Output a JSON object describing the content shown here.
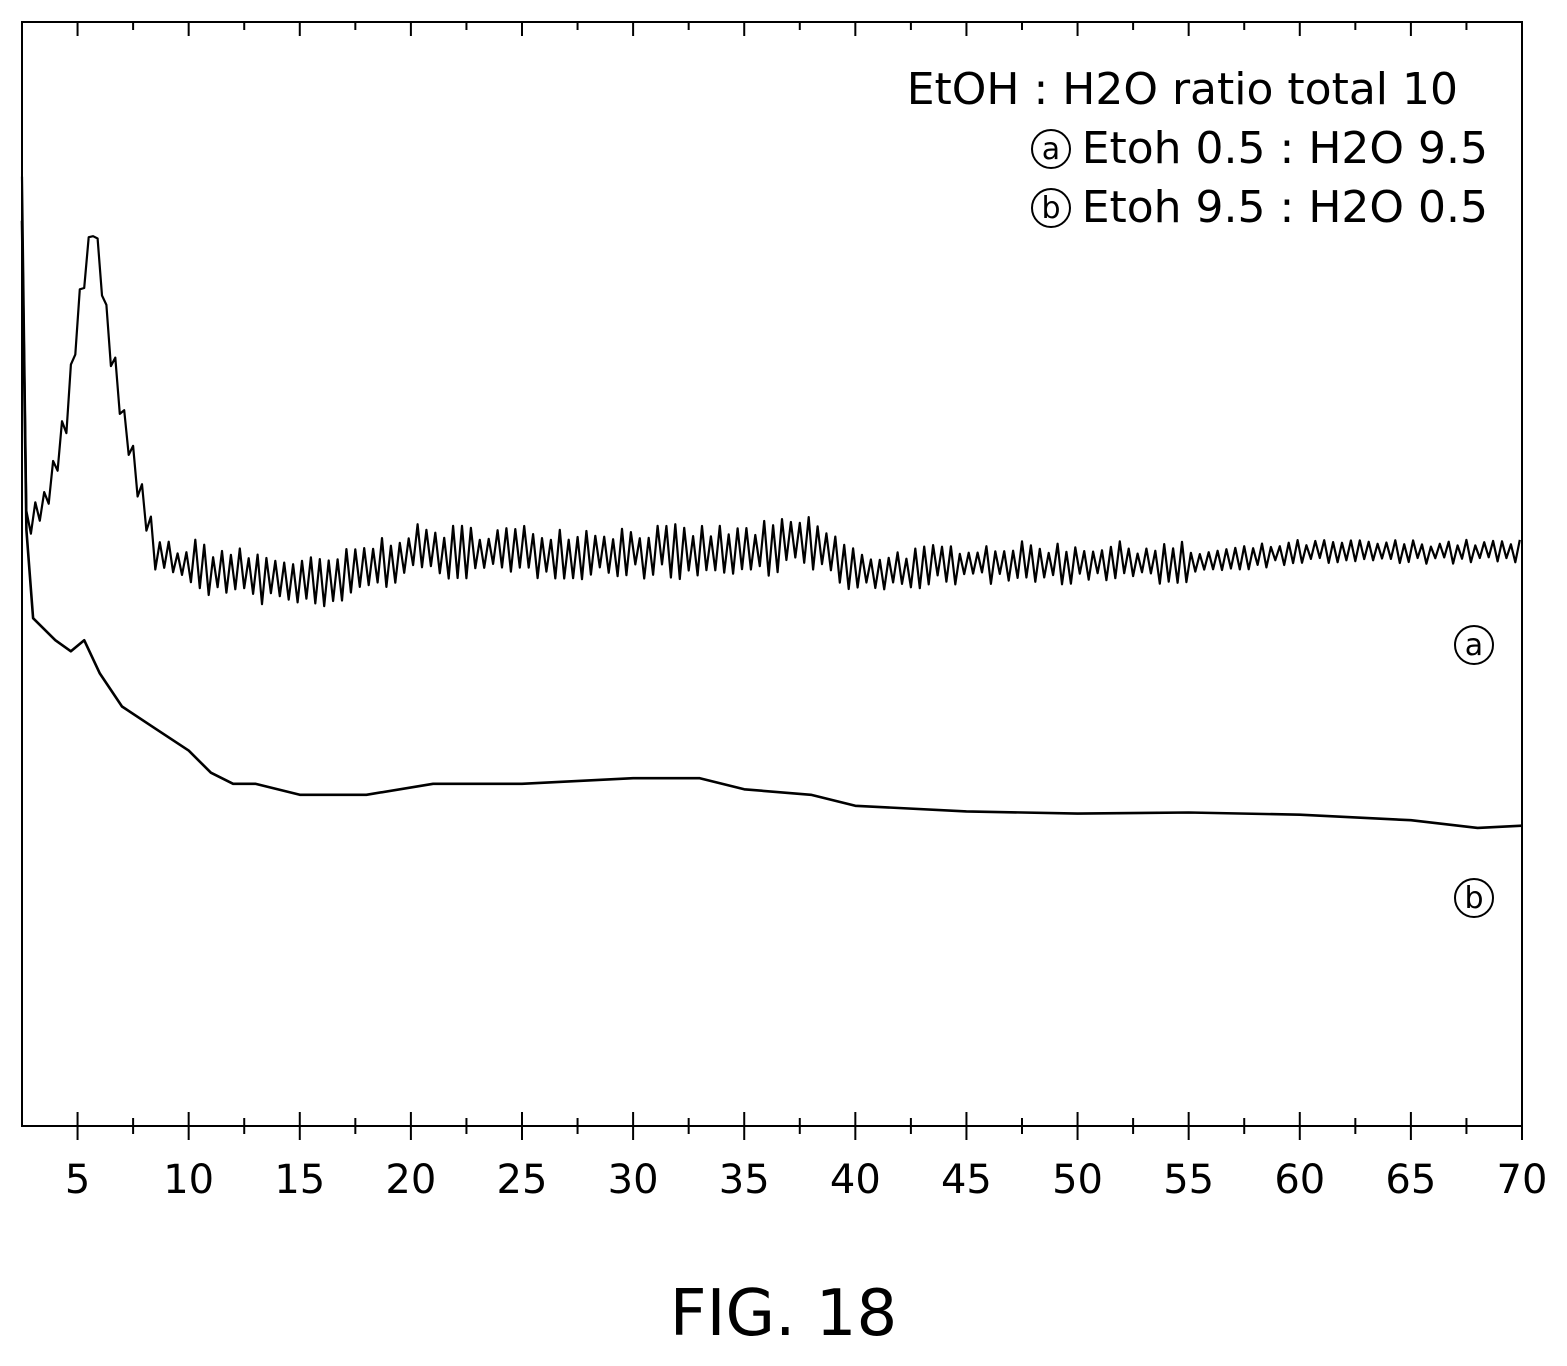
{
  "figure": {
    "caption": "FIG. 18"
  },
  "chart_data": {
    "type": "line",
    "title": "",
    "xlabel": "",
    "ylabel": "",
    "xlim": [
      2.5,
      70
    ],
    "x_ticks_major": [
      5,
      10,
      15,
      20,
      25,
      30,
      35,
      40,
      45,
      50,
      55,
      60,
      65,
      70
    ],
    "x_ticks_minor": [
      7.5,
      12.5,
      17.5,
      22.5,
      27.5,
      32.5,
      37.5,
      42.5,
      47.5,
      52.5,
      57.5,
      62.5,
      67.5
    ],
    "y_ticks": "none",
    "grid": false,
    "legend": {
      "placement": "top-right",
      "heading": "EtOH : H2O ratio total 10",
      "entries": [
        {
          "marker": "a",
          "label": "Etoh 0.5 : H2O 9.5"
        },
        {
          "marker": "b",
          "label": "Etoh 9.5 : H2O 0.5"
        }
      ]
    },
    "series": [
      {
        "name": "a",
        "noisy": true,
        "points": [
          [
            2.5,
            0.86
          ],
          [
            2.7,
            0.55
          ],
          [
            3.5,
            0.56
          ],
          [
            4.5,
            0.64
          ],
          [
            5.0,
            0.73
          ],
          [
            5.7,
            0.82
          ],
          [
            6.5,
            0.7
          ],
          [
            7.5,
            0.6
          ],
          [
            8.5,
            0.52
          ],
          [
            9.5,
            0.51
          ],
          [
            12,
            0.5
          ],
          [
            16,
            0.49
          ],
          [
            20,
            0.52
          ],
          [
            25,
            0.52
          ],
          [
            30,
            0.52
          ],
          [
            35,
            0.52
          ],
          [
            38,
            0.53
          ],
          [
            40,
            0.5
          ],
          [
            45,
            0.51
          ],
          [
            50,
            0.51
          ],
          [
            55,
            0.51
          ],
          [
            60,
            0.52
          ],
          [
            65,
            0.52
          ],
          [
            70,
            0.52
          ]
        ]
      },
      {
        "name": "b",
        "noisy": false,
        "points": [
          [
            2.5,
            0.82
          ],
          [
            2.7,
            0.54
          ],
          [
            3,
            0.46
          ],
          [
            4,
            0.44
          ],
          [
            4.7,
            0.43
          ],
          [
            5.3,
            0.44
          ],
          [
            6,
            0.41
          ],
          [
            7,
            0.38
          ],
          [
            8.5,
            0.36
          ],
          [
            10,
            0.34
          ],
          [
            11,
            0.32
          ],
          [
            12,
            0.31
          ],
          [
            13,
            0.31
          ],
          [
            15,
            0.3
          ],
          [
            18,
            0.3
          ],
          [
            21,
            0.31
          ],
          [
            25,
            0.31
          ],
          [
            30,
            0.315
          ],
          [
            33,
            0.315
          ],
          [
            35,
            0.305
          ],
          [
            38,
            0.3
          ],
          [
            40,
            0.29
          ],
          [
            45,
            0.285
          ],
          [
            50,
            0.283
          ],
          [
            55,
            0.284
          ],
          [
            60,
            0.282
          ],
          [
            65,
            0.277
          ],
          [
            68,
            0.27
          ],
          [
            70,
            0.272
          ]
        ]
      }
    ]
  }
}
